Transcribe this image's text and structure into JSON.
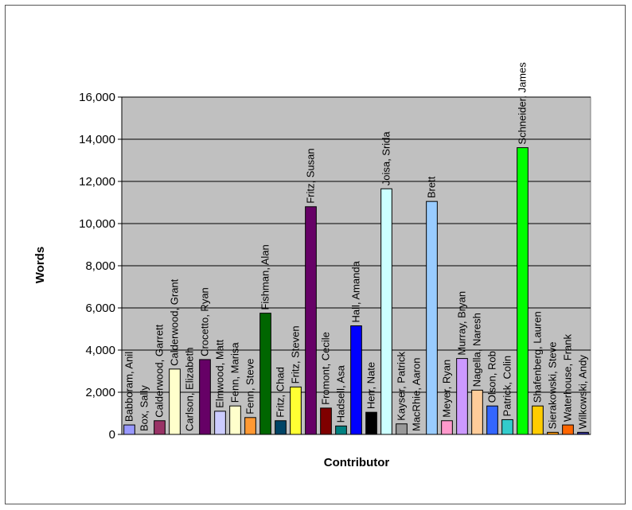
{
  "chart_data": {
    "type": "bar",
    "title": "",
    "xlabel": "Contributor",
    "ylabel": "Words",
    "ylim": [
      0,
      16000
    ],
    "yticks": [
      "0",
      "2,000",
      "4,000",
      "6,000",
      "8,000",
      "10,000",
      "12,000",
      "14,000",
      "16,000"
    ],
    "grid": true,
    "legend": "none",
    "plot_background": "#c0c0c0",
    "categories": [
      "Babboram, Anil",
      "Box, Sally",
      "Calderwood, Garrett",
      "Calderwood, Grant",
      "Carlson, Elizabeth",
      "Crocetto, Ryan",
      "Elmwood, Matt",
      "Fenn, Marisa",
      "Fenn, Steve",
      "Fishman, Alan",
      "Fritz, Chad",
      "Fritz, Steven",
      "Fritz, Susan",
      "Fromont, Cecile",
      "Hadsell, Asa",
      "Hall, Amanda",
      "Herr, Nate",
      "Joisa, Srida",
      "Kayser, Patrick",
      "MacRhie, Aaron",
      "Brett",
      "Meyer, Ryan",
      "Murray, Bryan",
      "Nagella, Naresh",
      "Olson, Rob",
      "Patrick, Colin",
      "Schneider, James",
      "Shafenberg, Lauren",
      "Sierakowski, Steve",
      "Waterhouse, Frank",
      "Wilkowski, Andy"
    ],
    "values": [
      450,
      0,
      650,
      3100,
      0,
      3550,
      1100,
      1350,
      800,
      5750,
      650,
      2250,
      10800,
      1250,
      400,
      5150,
      1050,
      11650,
      500,
      0,
      11050,
      650,
      3600,
      2100,
      1350,
      700,
      13600,
      1350,
      100,
      450,
      100
    ],
    "colors": [
      "#9999ff",
      "#993366",
      "#993366",
      "#ffffcc",
      "#ccffff",
      "#660066",
      "#ccccff",
      "#ffffcc",
      "#ff9933",
      "#006600",
      "#004466",
      "#ffff33",
      "#660066",
      "#7f0000",
      "#008080",
      "#0000ff",
      "#000000",
      "#ccffff",
      "#999999",
      "#c0c0c0",
      "#99ccff",
      "#ff99cc",
      "#cc99ff",
      "#ffcc99",
      "#3366ff",
      "#33cccc",
      "#00ff00",
      "#ffcc00",
      "#ff9900",
      "#ff6600",
      "#333399"
    ]
  }
}
